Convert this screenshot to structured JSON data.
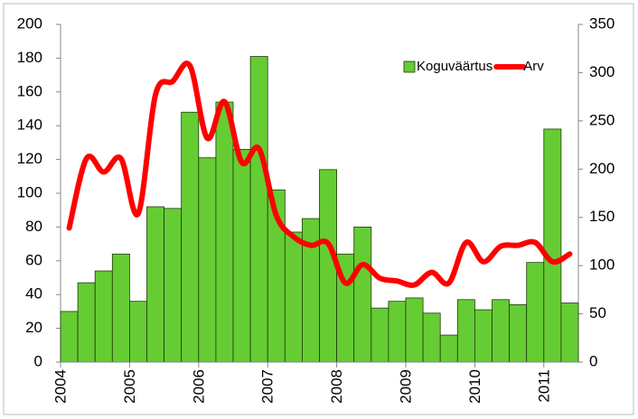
{
  "chart_data": {
    "type": "bar_line",
    "categories": [
      "2004",
      null,
      null,
      null,
      "2005",
      null,
      null,
      null,
      "2006",
      null,
      null,
      null,
      "2007",
      null,
      null,
      null,
      "2008",
      null,
      null,
      null,
      "2009",
      null,
      null,
      null,
      "2010",
      null,
      null,
      null,
      "2011",
      null
    ],
    "series": [
      {
        "name": "Koguväärtus",
        "type": "bar",
        "color": "#66cc33",
        "values": [
          30,
          47,
          54,
          64,
          36,
          92,
          91,
          148,
          121,
          154,
          126,
          181,
          102,
          77,
          85,
          114,
          64,
          80,
          32,
          36,
          38,
          29,
          16,
          37,
          31,
          37,
          34,
          59,
          138,
          35
        ]
      },
      {
        "name": "Arv",
        "type": "line",
        "axis": "y2",
        "color": "#ff0000",
        "values": [
          139,
          211,
          197,
          211,
          154,
          277,
          291,
          307,
          232,
          270,
          207,
          221,
          152,
          130,
          121,
          123,
          82,
          101,
          87,
          84,
          80,
          93,
          82,
          124,
          104,
          120,
          121,
          124,
          104,
          112
        ]
      }
    ],
    "ylim": [
      0,
      200
    ],
    "yticks": [
      0,
      20,
      40,
      60,
      80,
      100,
      120,
      140,
      160,
      180,
      200
    ],
    "y2lim": [
      0,
      350
    ],
    "y2ticks": [
      0,
      50,
      100,
      150,
      200,
      250,
      300,
      350
    ],
    "legend": "upper right"
  }
}
